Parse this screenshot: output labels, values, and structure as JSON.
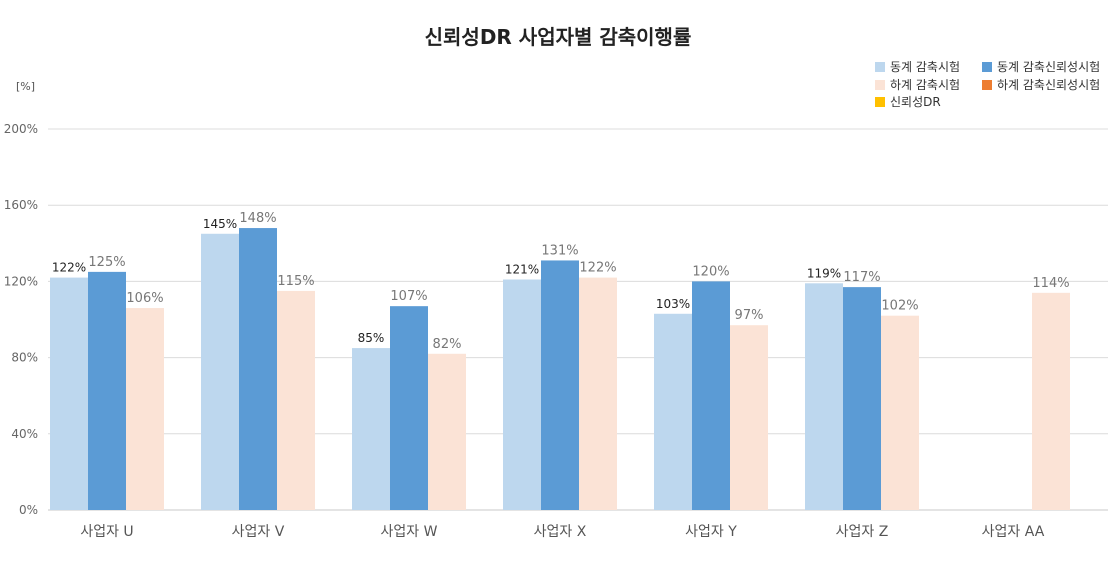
{
  "chart_data": {
    "type": "bar",
    "title": "신뢰성DR 사업자별 감축이행률",
    "unit_label": "[%]",
    "ylim": [
      0,
      200
    ],
    "yticks": [
      0,
      40,
      80,
      120,
      160,
      200
    ],
    "ytick_labels": [
      "0%",
      "40%",
      "80%",
      "120%",
      "160%",
      "200%"
    ],
    "grid": true,
    "legend_position": "top-right",
    "categories": [
      "사업자 U",
      "사업자 V",
      "사업자 W",
      "사업자 X",
      "사업자 Y",
      "사업자 Z",
      "사업자 AA"
    ],
    "series": [
      {
        "name": "동계 감축시험",
        "color": "#bdd7ee",
        "label_style": "dark",
        "values": [
          122,
          145,
          85,
          121,
          103,
          119,
          null
        ],
        "labels": [
          "122%",
          "145%",
          "85%",
          "121%",
          "103%",
          "119%",
          ""
        ]
      },
      {
        "name": "동계 감축신뢰성시험",
        "color": "#5b9bd5",
        "label_style": "light",
        "values": [
          125,
          148,
          107,
          131,
          120,
          117,
          null
        ],
        "labels": [
          "125%",
          "148%",
          "107%",
          "131%",
          "120%",
          "117%",
          ""
        ]
      },
      {
        "name": "하계 감축시험",
        "color": "#fbe3d6",
        "label_style": "light",
        "values": [
          106,
          115,
          82,
          122,
          97,
          102,
          114
        ],
        "labels": [
          "106%",
          "115%",
          "82%",
          "122%",
          "97%",
          "102%",
          "114%"
        ]
      },
      {
        "name": "하계 감축신뢰성시험",
        "color": "#ed7d31",
        "label_style": "light",
        "values": [
          null,
          null,
          null,
          null,
          null,
          null,
          null
        ],
        "labels": [
          "",
          "",
          "",
          "",
          "",
          "",
          ""
        ]
      },
      {
        "name": "신뢰성DR",
        "color": "#ffc000",
        "label_style": "light",
        "values": [
          null,
          null,
          null,
          null,
          null,
          null,
          null
        ],
        "labels": [
          "",
          "",
          "",
          "",
          "",
          "",
          ""
        ]
      }
    ]
  }
}
